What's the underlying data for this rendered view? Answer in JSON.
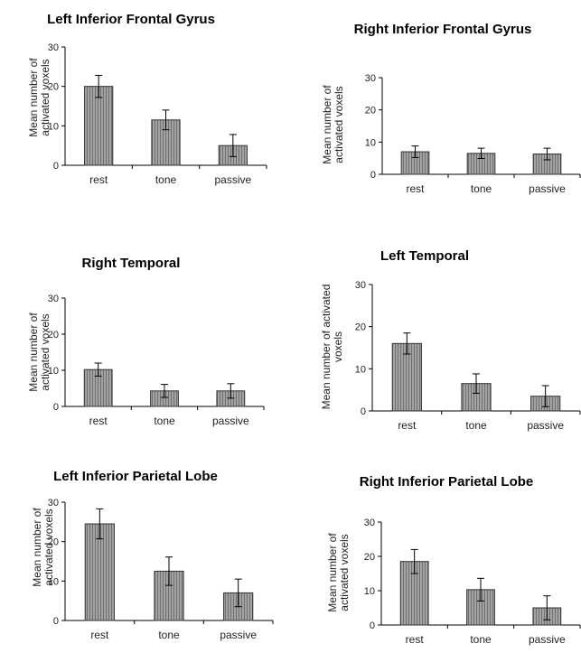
{
  "colors": {
    "bar_fill": "#9a9a9a",
    "bar_stripe": "#6e6e6e",
    "axis": "#000000"
  },
  "chart_data": [
    {
      "type": "bar",
      "title": "Left Inferior Frontal Gyrus",
      "ylabel": "Mean number of activated voxels",
      "categories": [
        "rest",
        "tone",
        "passive"
      ],
      "values": [
        20,
        11.5,
        5
      ],
      "errors": [
        2.8,
        2.5,
        2.8
      ],
      "ylim": [
        0,
        30
      ],
      "yticks": [
        0,
        10,
        20,
        30
      ],
      "grid": false
    },
    {
      "type": "bar",
      "title": "Right Inferior Frontal Gyrus",
      "ylabel": "Mean number of activated voxels",
      "categories": [
        "rest",
        "tone",
        "passive"
      ],
      "values": [
        7,
        6.5,
        6.3
      ],
      "errors": [
        1.8,
        1.6,
        1.8
      ],
      "ylim": [
        0,
        30
      ],
      "yticks": [
        0,
        10,
        20,
        30
      ],
      "grid": false
    },
    {
      "type": "bar",
      "title": "Right Temporal",
      "ylabel": "Mean number of activated voxels",
      "categories": [
        "rest",
        "tone",
        "passive"
      ],
      "values": [
        10.2,
        4.3,
        4.3
      ],
      "errors": [
        1.8,
        1.8,
        2.0
      ],
      "ylim": [
        0,
        30
      ],
      "yticks": [
        0,
        10,
        20,
        30
      ],
      "grid": false
    },
    {
      "type": "bar",
      "title": "Left Temporal",
      "ylabel": "Mean number of activated voxels",
      "categories": [
        "rest",
        "tone",
        "passive"
      ],
      "values": [
        16,
        6.5,
        3.5
      ],
      "errors": [
        2.5,
        2.3,
        2.5
      ],
      "ylim": [
        0,
        30
      ],
      "yticks": [
        0,
        10,
        20,
        30
      ],
      "grid": false
    },
    {
      "type": "bar",
      "title": "Left Inferior Parietal Lobe",
      "ylabel": "Mean number of activated voxels",
      "categories": [
        "rest",
        "tone",
        "passive"
      ],
      "values": [
        24.5,
        12.5,
        7
      ],
      "errors": [
        3.8,
        3.6,
        3.5
      ],
      "ylim": [
        0,
        30
      ],
      "yticks": [
        0,
        10,
        20,
        30
      ],
      "grid": false
    },
    {
      "type": "bar",
      "title": "Right Inferior Parietal Lobe",
      "ylabel": "Mean number of activated voxels",
      "categories": [
        "rest",
        "tone",
        "passive"
      ],
      "values": [
        18.5,
        10.3,
        5
      ],
      "errors": [
        3.5,
        3.3,
        3.5
      ],
      "ylim": [
        0,
        30
      ],
      "yticks": [
        0,
        10,
        20,
        30
      ],
      "grid": false
    }
  ]
}
